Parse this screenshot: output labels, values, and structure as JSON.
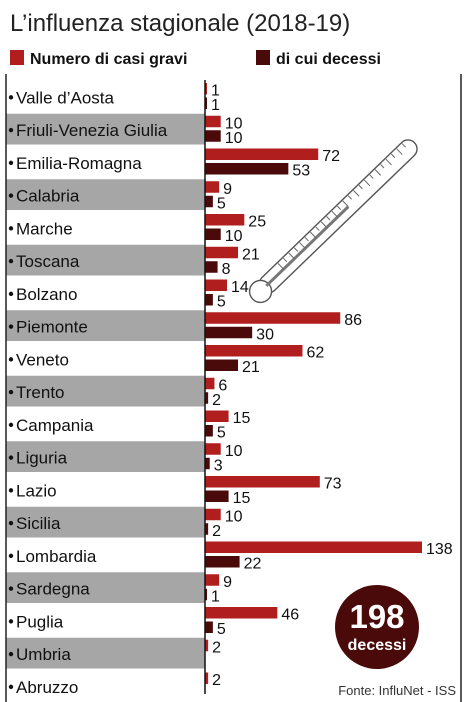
{
  "chart_data": {
    "type": "bar",
    "orientation": "horizontal",
    "title": "L’influenza stagionale (2018-19)",
    "legend": {
      "position": "top"
    },
    "categories": [
      "Valle d’Aosta",
      "Friuli-Venezia Giulia",
      "Emilia-Romagna",
      "Calabria",
      "Marche",
      "Toscana",
      "Bolzano",
      "Piemonte",
      "Veneto",
      "Trento",
      "Campania",
      "Liguria",
      "Lazio",
      "Sicilia",
      "Lombardia",
      "Sardegna",
      "Puglia",
      "Umbria",
      "Abruzzo"
    ],
    "series": [
      {
        "name": "Numero di casi gravi",
        "color": "#b01e1e",
        "values": [
          1,
          10,
          72,
          9,
          25,
          21,
          14,
          86,
          62,
          6,
          15,
          10,
          73,
          10,
          138,
          9,
          46,
          2,
          2
        ]
      },
      {
        "name": "di cui decessi",
        "color": "#4a0a0a",
        "values": [
          1,
          10,
          53,
          5,
          10,
          8,
          5,
          30,
          21,
          2,
          5,
          3,
          15,
          2,
          22,
          1,
          5,
          null,
          null
        ]
      }
    ],
    "xlim": [
      0,
      138
    ],
    "grid": false
  },
  "badge": {
    "number": "198",
    "label": "decessi",
    "color": "#4a0a0a"
  },
  "source": "Fonte: InfluNet - ISS",
  "colors": {
    "row_band": "#a6a6a6",
    "frame": "#222222"
  }
}
